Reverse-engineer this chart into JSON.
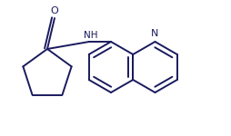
{
  "background_color": "#ffffff",
  "line_color": "#1a1a5e",
  "line_width": 1.4,
  "font_size_O": 8,
  "font_size_NH": 7.5,
  "font_size_N": 8,
  "figsize": [
    2.55,
    1.5
  ],
  "dpi": 100,
  "xlim": [
    0,
    255
  ],
  "ylim": [
    0,
    150
  ]
}
